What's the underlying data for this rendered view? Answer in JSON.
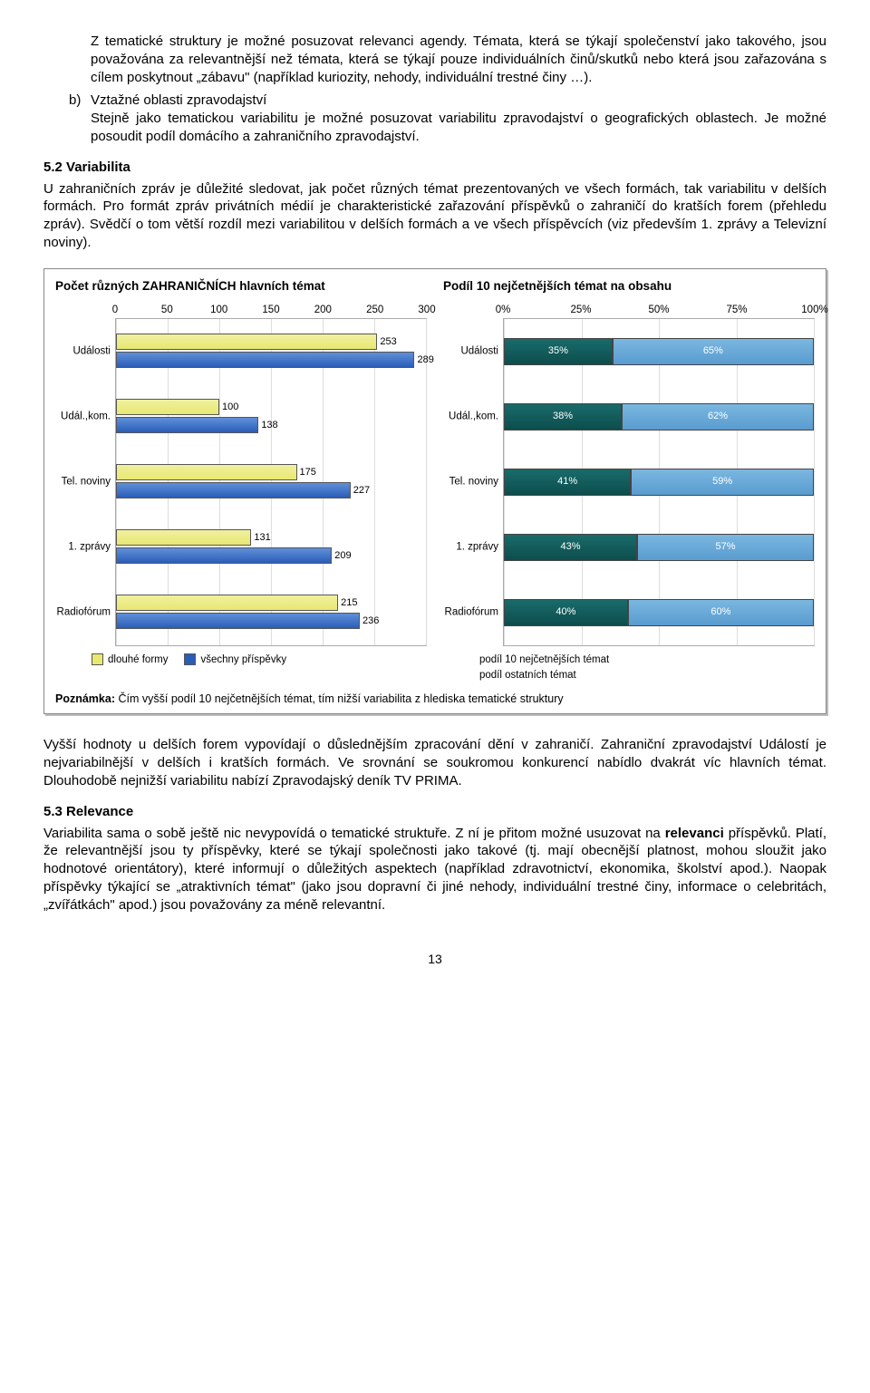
{
  "intro": {
    "p1": "Z tematické struktury je možné posuzovat relevanci agendy. Témata, která se týkají společenství jako takového, jsou považována za relevantnější než témata, která se týkají pouze individuálních činů/skutků nebo která jsou zařazována s cílem poskytnout „zábavu\" (například kuriozity, nehody, individuální trestné činy …).",
    "b_marker": "b)",
    "b_title": "Vztažné oblasti zpravodajství",
    "b_body": "Stejně jako tematickou variabilitu je možné posuzovat variabilitu zpravodajství o geografických oblastech. Je možné posoudit podíl domácího a zahraničního zpravodajství."
  },
  "sec52": {
    "heading": "5.2 Variabilita",
    "body": "U zahraničních zpráv je důležité sledovat, jak počet různých témat prezentovaných ve všech formách, tak variabilitu v delších formách. Pro formát zpráv privátních médií je charakteristické zařazování příspěvků o zahraničí do kratších forem (přehledu zpráv). Svědčí o tom větší rozdíl mezi variabilitou v delších formách a ve všech příspěvcích (viz především 1. zprávy a Televizní noviny)."
  },
  "after": {
    "p1": "Vyšší hodnoty u delších forem vypovídají o důslednějším zpracování dění v zahraničí. Zahraniční zpravodajství Událostí je nejvariabilnější v delších i kratších formách. Ve srovnání se soukromou konkurencí nabídlo dvakrát víc hlavních témat. Dlouhodobě nejnižší variabilitu nabízí Zpravodajský deník TV PRIMA."
  },
  "sec53": {
    "heading": "5.3 Relevance",
    "body": "Variabilita sama o sobě ještě nic nevypovídá o tematické struktuře. Z ní je přitom možné usuzovat na <b>relevanci</b> příspěvků. Platí, že relevantnější jsou ty příspěvky, které se týkají společnosti jako takové (tj. mají obecnější platnost, mohou sloužit jako hodnotové orientátory), které informují o důležitých aspektech (například zdravotnictví, ekonomika, školství apod.). Naopak příspěvky týkající se „atraktivních témat\" (jako jsou dopravní či jiné nehody, individuální trestné činy, informace o celebritách, „zvířátkách\" apod.) jsou považovány za méně relevantní."
  },
  "charts": {
    "left": {
      "title": "Počet různých ZAHRANIČNÍCH hlavních témat",
      "xmax": 300,
      "xticks": [
        0,
        50,
        100,
        150,
        200,
        250,
        300
      ],
      "categories": [
        "Události",
        "Udál.,kom.",
        "Tel. noviny",
        "1. zprávy",
        "Radiofórum"
      ],
      "series": [
        {
          "name": "dlouhé formy",
          "color_class": "yellow",
          "values": [
            253,
            100,
            175,
            131,
            215
          ]
        },
        {
          "name": "všechny příspěvky",
          "color_class": "blue",
          "values": [
            289,
            138,
            227,
            209,
            236
          ]
        }
      ],
      "legend_colors": {
        "yellow": "#e8e870",
        "blue": "#2a5db8"
      }
    },
    "right": {
      "title": "Podíl 10 nejčetnějších témat na obsahu",
      "xticks": [
        "0%",
        "25%",
        "50%",
        "75%",
        "100%"
      ],
      "categories": [
        "Události",
        "Udál.,kom.",
        "Tel. noviny",
        "1. zprávy",
        "Radiofórum"
      ],
      "rows": [
        {
          "a": 35,
          "b": 65
        },
        {
          "a": 38,
          "b": 62
        },
        {
          "a": 41,
          "b": 59
        },
        {
          "a": 43,
          "b": 57
        },
        {
          "a": 40,
          "b": 60
        }
      ],
      "legend": [
        "podíl 10 nejčetnějších témat",
        "podíl ostatních témat"
      ],
      "legend_colors": {
        "dark": "#0d4d4d",
        "light": "#5a9cd0"
      }
    },
    "note_label": "Poznámka:",
    "note": "Čím vyšší podíl 10 nejčetnějších témat, tím nižší variabilita z hlediska tematické struktury"
  },
  "page_number": "13"
}
